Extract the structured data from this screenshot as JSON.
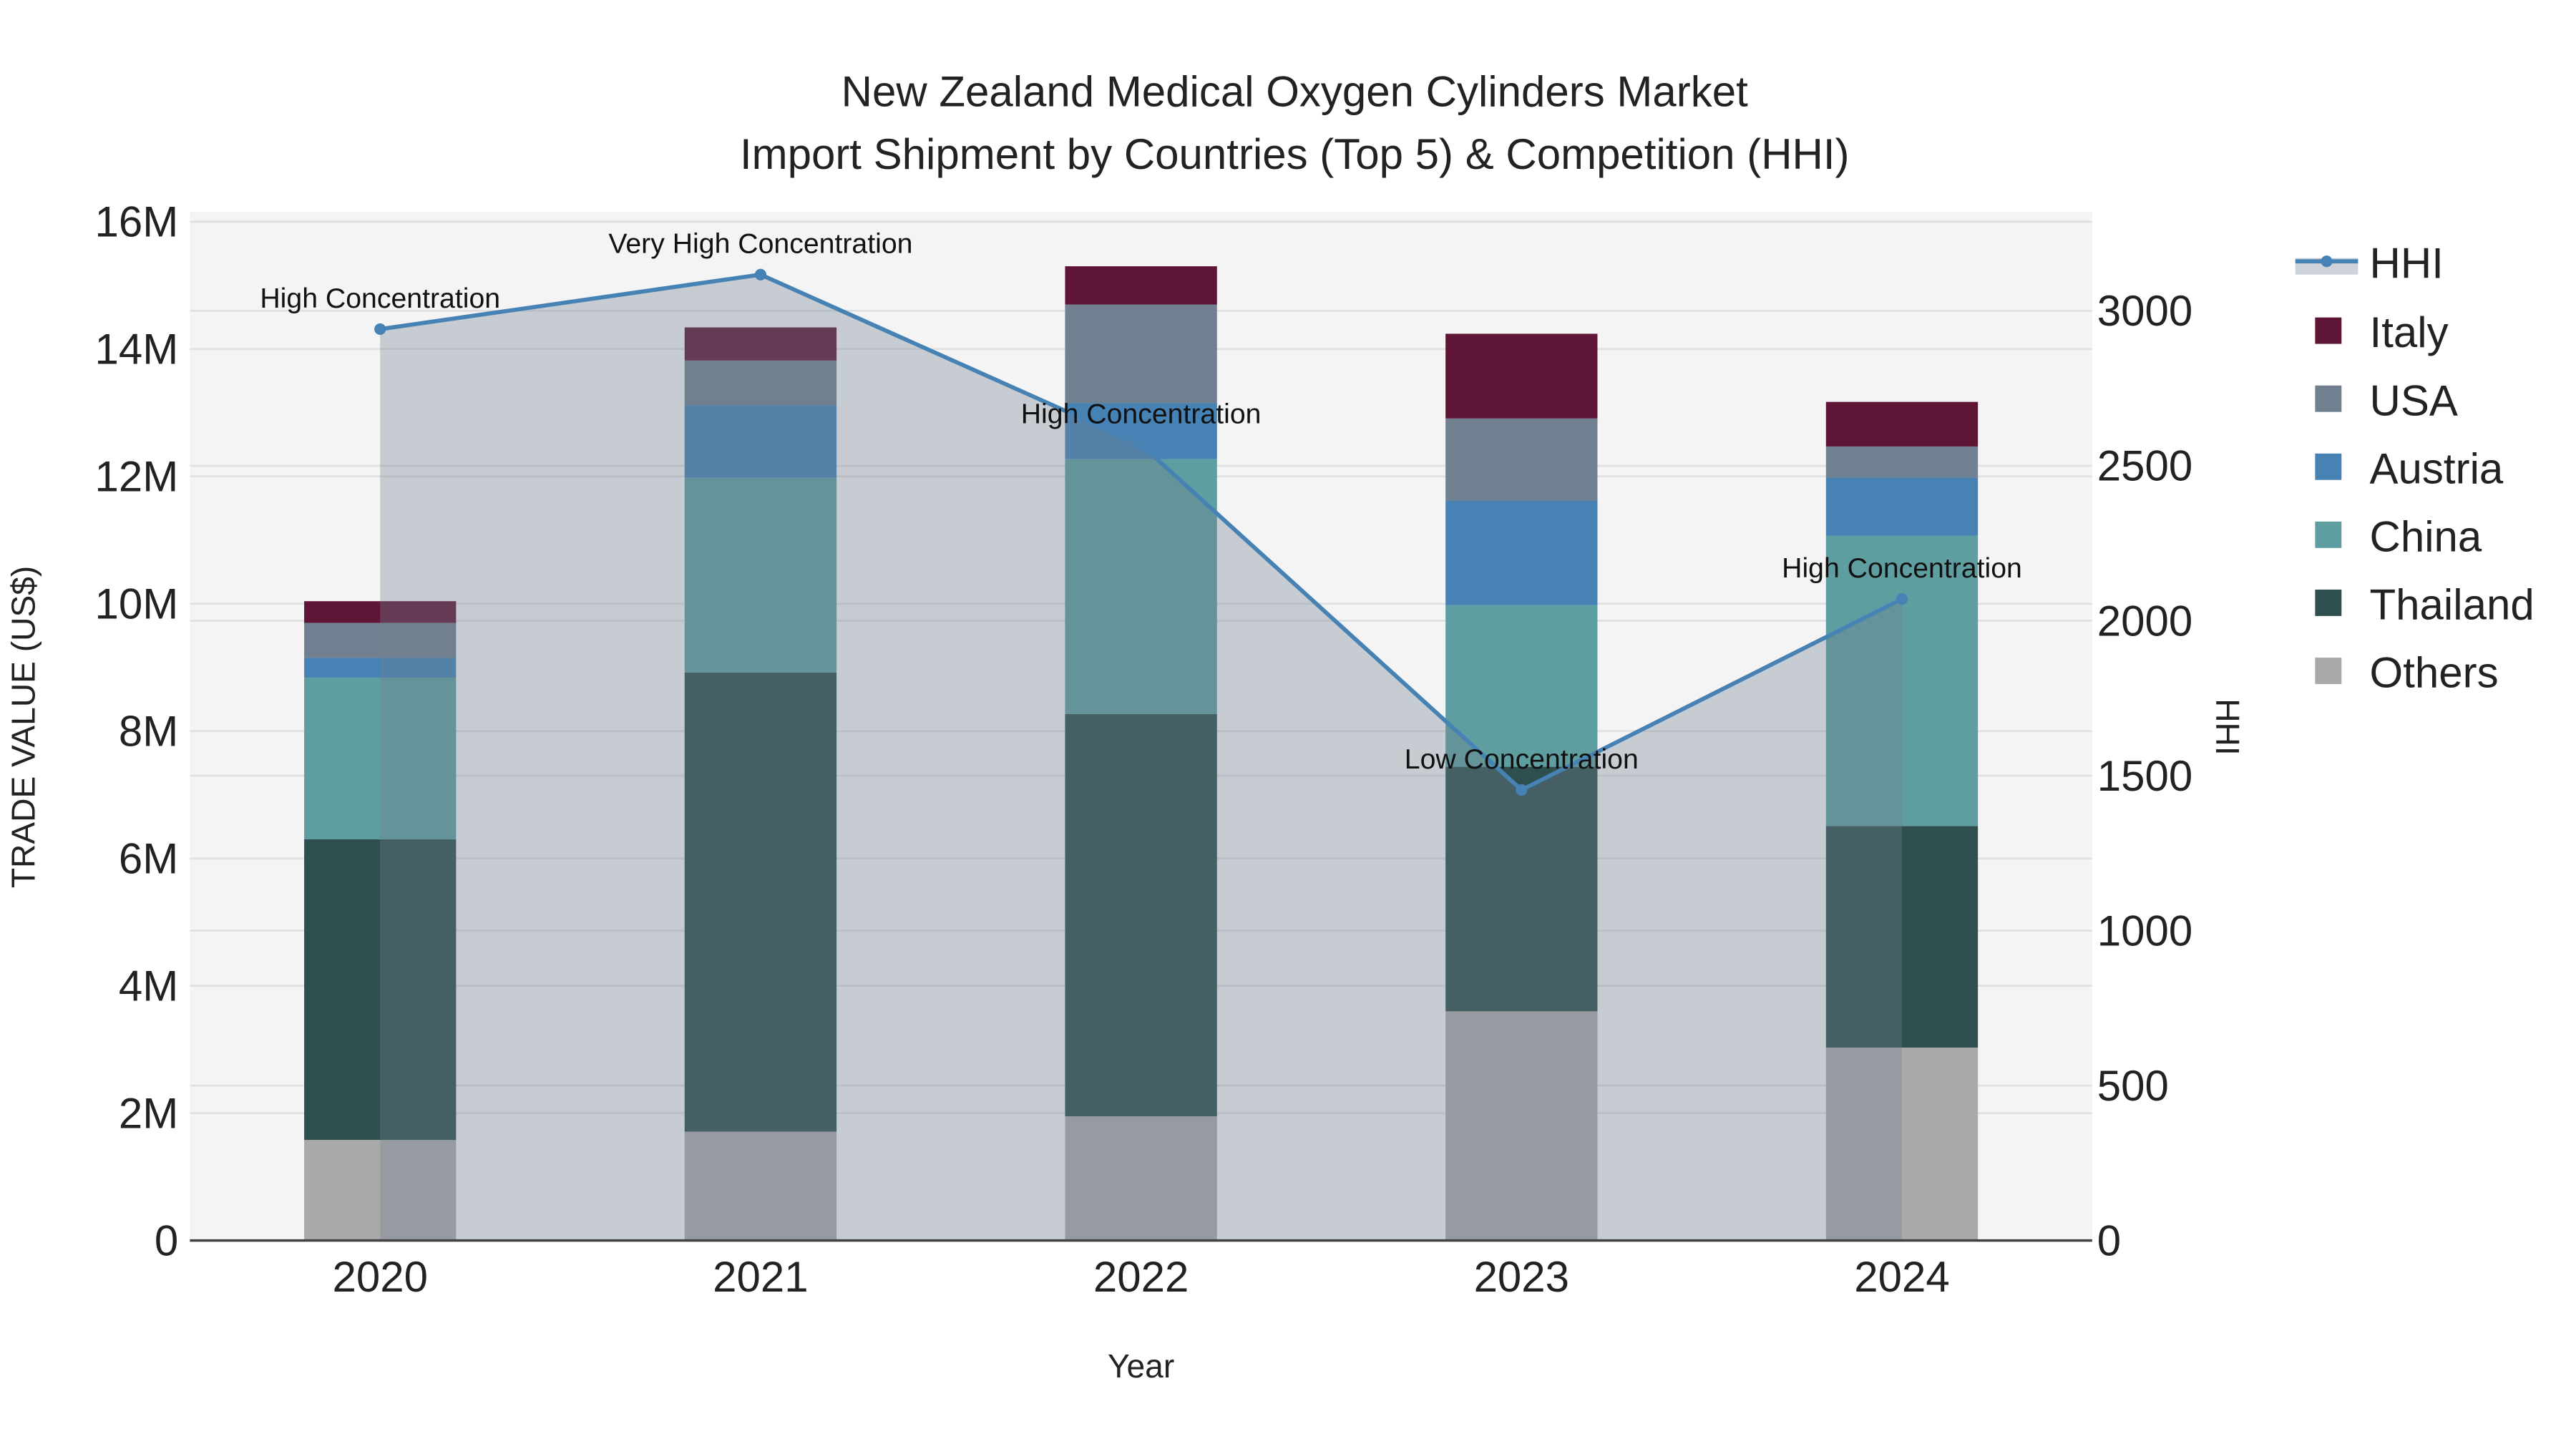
{
  "chart_data": {
    "type": "bar",
    "title_line1": "New Zealand Medical Oxygen Cylinders Market",
    "title_line2": "Import Shipment by Countries (Top 5) & Competition (HHI)",
    "xlabel": "Year",
    "ylabel": "TRADE VALUE (US$)",
    "y2label": "HHI",
    "categories": [
      "2020",
      "2021",
      "2022",
      "2023",
      "2024"
    ],
    "ylim": [
      0,
      16000000
    ],
    "yticks": [
      0,
      2000000,
      4000000,
      6000000,
      8000000,
      10000000,
      12000000,
      14000000,
      16000000
    ],
    "ytick_labels": [
      "0",
      "2M",
      "4M",
      "6M",
      "8M",
      "10M",
      "12M",
      "14M",
      "16M"
    ],
    "y2lim": [
      0,
      3300
    ],
    "y2ticks": [
      0,
      500,
      1000,
      1500,
      2000,
      2500,
      3000
    ],
    "y2tick_labels": [
      "0",
      "500",
      "1000",
      "1500",
      "2000",
      "2500",
      "3000"
    ],
    "stacking": "stacked",
    "grid": true,
    "legend_position": "right",
    "series": [
      {
        "name": "Others",
        "color": "#a9a9a9",
        "values": [
          1580000,
          1710000,
          1950000,
          3600000,
          3030000
        ]
      },
      {
        "name": "Thailand",
        "color": "#2f4f4f",
        "values": [
          4720000,
          7210000,
          6320000,
          3840000,
          3480000
        ]
      },
      {
        "name": "China",
        "color": "#5f9ea0",
        "values": [
          2540000,
          3060000,
          4000000,
          2540000,
          4560000
        ]
      },
      {
        "name": "Austria",
        "color": "#4682b4",
        "values": [
          310000,
          1140000,
          880000,
          1640000,
          910000
        ]
      },
      {
        "name": "USA",
        "color": "#708090",
        "values": [
          550000,
          700000,
          1550000,
          1290000,
          490000
        ]
      },
      {
        "name": "Italy",
        "color": "#5f1536",
        "values": [
          340000,
          520000,
          600000,
          1330000,
          700000
        ]
      }
    ],
    "hhi": {
      "name": "HHI",
      "color": "#4682b4",
      "values": [
        2941,
        3117,
        2568,
        1454,
        2070
      ],
      "annotations": [
        "High Concentration",
        "Very High Concentration",
        "High Concentration",
        "Low Concentration",
        "High Concentration"
      ]
    },
    "legend_order": [
      "HHI",
      "Italy",
      "USA",
      "Austria",
      "China",
      "Thailand",
      "Others"
    ]
  }
}
